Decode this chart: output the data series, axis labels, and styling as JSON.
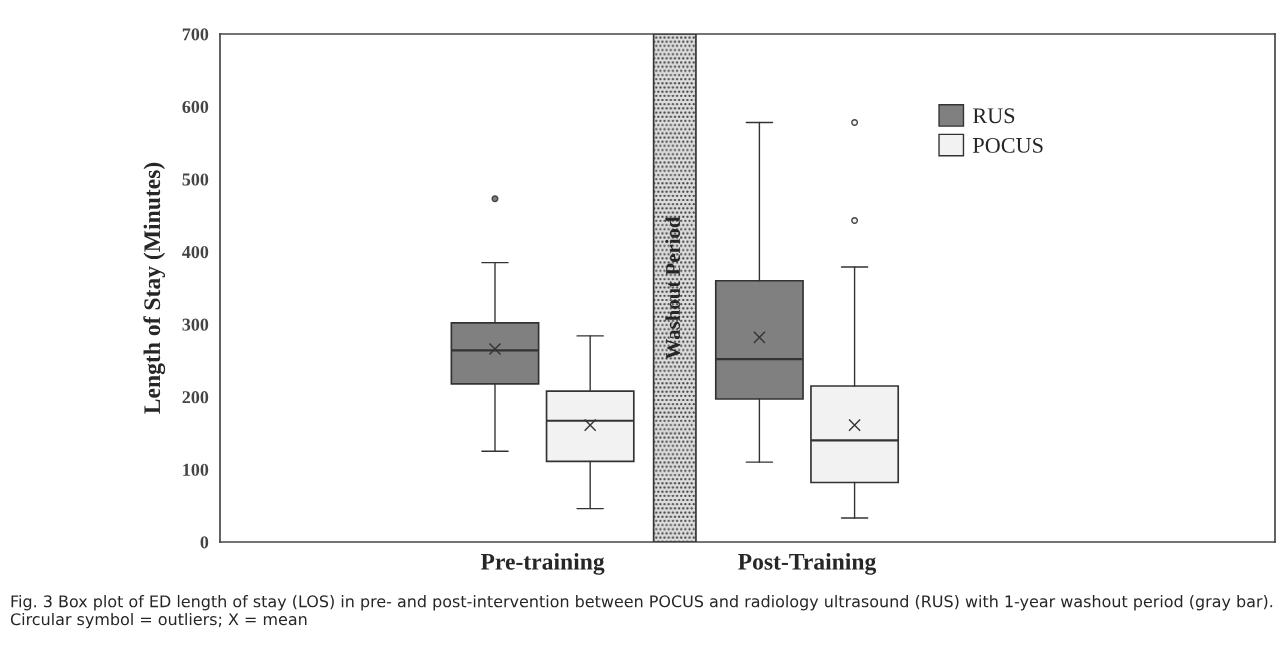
{
  "chart_data": {
    "type": "box",
    "ylabel": "Length of Stay (Minutes)",
    "categories": [
      "Pre-training",
      "Post-Training"
    ],
    "ylim": [
      0,
      700
    ],
    "yticks": [
      0,
      100,
      200,
      300,
      400,
      500,
      600,
      700
    ],
    "grid": false,
    "legend": "top right",
    "series": [
      {
        "name": "RUS",
        "color": "#808080",
        "boxes": [
          {
            "low": 125,
            "q1": 218,
            "median": 264,
            "q3": 302,
            "high": 385,
            "mean": 266,
            "outliers": [
              473
            ]
          },
          {
            "low": 110,
            "q1": 197,
            "median": 252,
            "q3": 360,
            "high": 578,
            "mean": 282
          }
        ]
      },
      {
        "name": "POCUS",
        "color": "#f2f2f2",
        "boxes": [
          {
            "low": 46,
            "q1": 111,
            "median": 167,
            "q3": 208,
            "high": 284,
            "mean": 161
          },
          {
            "low": 33,
            "q1": 82,
            "median": 140,
            "q3": 215,
            "high": 379,
            "mean": 161,
            "outliers": [
              443,
              578
            ]
          }
        ]
      }
    ],
    "bands": [
      {
        "axis": "x",
        "from": "Pre-training",
        "to": "Post-Training",
        "label": "Washout Period"
      }
    ],
    "annotations": [
      "Fig. 3 Box plot of ED length of stay (LOS) in pre- and post-intervention between POCUS and radiology ultrasound (RUS) with 1-year washout period (gray bar). Circular symbol = outliers; X = mean"
    ]
  }
}
